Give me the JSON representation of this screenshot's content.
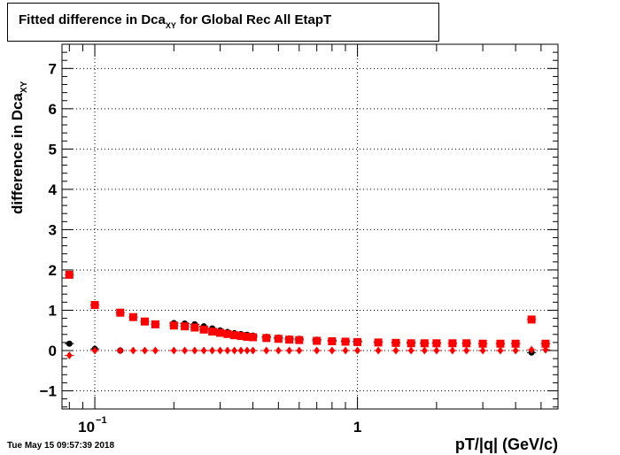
{
  "title": {
    "main": "Fitted difference in Dca",
    "sub": "XY",
    "suffix": " for Global Rec All EtapT"
  },
  "ylabel": {
    "main": "difference in Dca",
    "sub": "XY"
  },
  "xlabel": "pT/|q| (GeV/c)",
  "datestamp": "Tue May 15 09:57:39 2018",
  "chart_data": {
    "type": "scatter",
    "title": "Fitted difference in DcaXY for Global Rec All EtapT",
    "xlabel": "pT/|q| (GeV/c)",
    "ylabel": "difference in DcaXY",
    "x_scale": "log",
    "xlim": [
      0.075,
      5.8
    ],
    "ylim": [
      -1.45,
      7.6
    ],
    "grid": true,
    "y_ticks": [
      -1,
      0,
      1,
      2,
      3,
      4,
      5,
      6,
      7
    ],
    "y_tick_labels": [
      "−1",
      "0",
      "1",
      "2",
      "3",
      "4",
      "5",
      "6",
      "7"
    ],
    "x_tick_labels": [
      {
        "value": 0.1,
        "base": "10",
        "exp": "−1"
      },
      {
        "value": 1,
        "base": "1",
        "exp": ""
      }
    ],
    "series": [
      {
        "color": "#000000",
        "marker": "circle",
        "x": [
          0.08,
          0.1,
          0.125,
          0.2,
          0.22,
          0.24,
          0.26,
          0.28,
          0.3,
          0.32,
          0.34,
          0.36,
          0.38,
          0.4,
          0.45,
          0.5,
          0.55,
          0.6,
          0.7,
          0.8,
          0.9,
          1.0,
          1.2,
          1.4,
          1.6,
          1.8,
          2.0,
          2.3,
          2.6,
          3.0,
          3.5,
          4.0,
          4.6,
          5.2
        ],
        "y": [
          0.17,
          0.04,
          0.0,
          0.68,
          0.67,
          0.65,
          0.6,
          0.55,
          0.5,
          0.46,
          0.43,
          0.41,
          0.39,
          0.37,
          0.34,
          0.32,
          0.3,
          0.29,
          0.27,
          0.25,
          0.24,
          0.23,
          0.21,
          0.2,
          0.2,
          0.19,
          0.19,
          0.18,
          0.18,
          0.17,
          0.17,
          0.17,
          -0.05,
          0.17
        ]
      },
      {
        "color": "#ff0000",
        "marker": "square",
        "x": [
          0.08,
          0.1,
          0.125,
          0.14,
          0.155,
          0.17,
          0.2,
          0.22,
          0.24,
          0.26,
          0.28,
          0.3,
          0.32,
          0.34,
          0.36,
          0.38,
          0.4,
          0.45,
          0.5,
          0.55,
          0.6,
          0.7,
          0.8,
          0.9,
          1.0,
          1.2,
          1.4,
          1.6,
          1.8,
          2.0,
          2.3,
          2.6,
          3.0,
          3.5,
          4.0,
          4.6,
          5.2
        ],
        "y": [
          1.88,
          1.13,
          0.94,
          0.83,
          0.72,
          0.65,
          0.62,
          0.6,
          0.57,
          0.52,
          0.47,
          0.44,
          0.41,
          0.38,
          0.36,
          0.34,
          0.33,
          0.31,
          0.29,
          0.27,
          0.26,
          0.24,
          0.23,
          0.22,
          0.21,
          0.2,
          0.19,
          0.18,
          0.18,
          0.18,
          0.18,
          0.18,
          0.17,
          0.17,
          0.17,
          0.77,
          0.17
        ]
      },
      {
        "color": "#ff0000",
        "marker": "diamond",
        "x": [
          0.08,
          0.1,
          0.125,
          0.14,
          0.155,
          0.17,
          0.2,
          0.22,
          0.24,
          0.26,
          0.28,
          0.3,
          0.32,
          0.34,
          0.36,
          0.38,
          0.4,
          0.45,
          0.5,
          0.55,
          0.6,
          0.7,
          0.8,
          0.9,
          1.0,
          1.2,
          1.4,
          1.6,
          1.8,
          2.0,
          2.3,
          2.6,
          3.0,
          3.5,
          4.0,
          4.6,
          5.2
        ],
        "y": [
          -0.12,
          0.0,
          0.0,
          0.0,
          0.0,
          0.0,
          0.0,
          0.0,
          0.0,
          0.0,
          0.0,
          0.0,
          0.0,
          0.0,
          0.0,
          0.0,
          0.0,
          0.0,
          0.0,
          0.0,
          0.0,
          0.0,
          0.0,
          0.0,
          0.0,
          0.0,
          0.0,
          0.0,
          0.0,
          0.0,
          0.0,
          0.0,
          0.0,
          0.0,
          0.0,
          0.02,
          0.02
        ]
      }
    ]
  }
}
